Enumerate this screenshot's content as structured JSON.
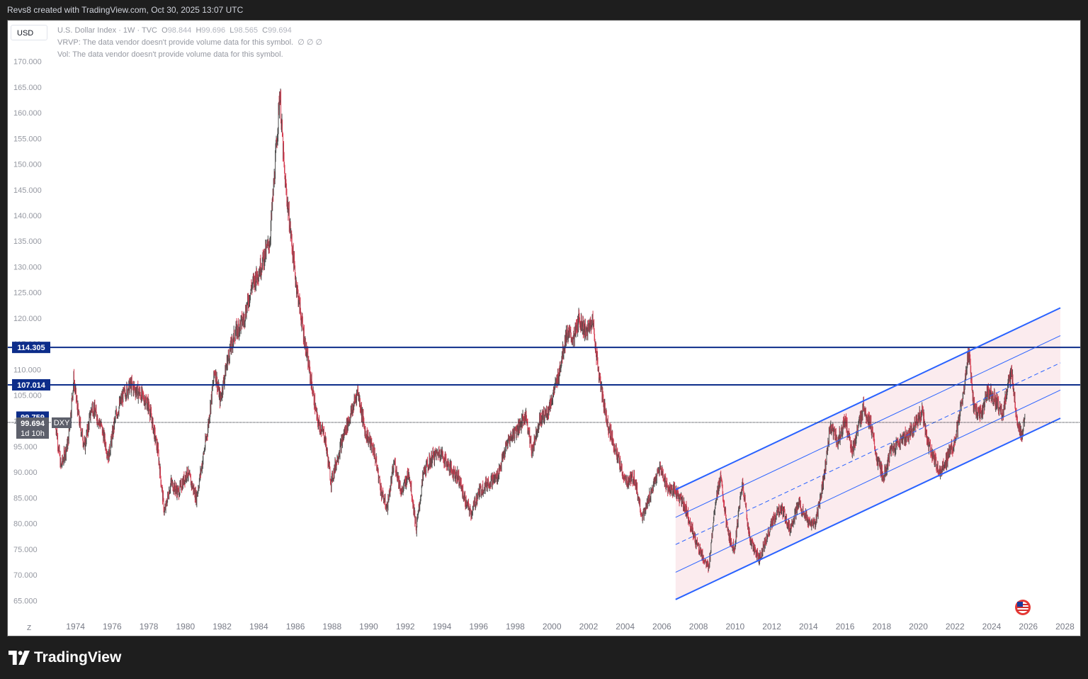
{
  "caption": "Revs8 created with TradingView.com, Oct 30, 2025 13:07 UTC",
  "currency": "USD",
  "legend": {
    "title": "U.S. Dollar Index · 1W · TVC",
    "o_label": "O",
    "o": "98.844",
    "h_label": "H",
    "h": "99.696",
    "l_label": "L",
    "l": "98.565",
    "c_label": "C",
    "c": "99.694",
    "vrvp": "VRVP: The data vendor doesn't provide volume data for this symbol.",
    "vrvp_tail": "∅  ∅  ∅",
    "vol": "Vol: The data vendor doesn't provide volume data for this symbol."
  },
  "zoom_label": "Z",
  "brand": "TradingView",
  "colors": {
    "up": "#4b4b4b",
    "down": "#d43a4f",
    "hline": "#0d2d8a",
    "channel": "#2962ff",
    "channel_fill": "#fbe9ec",
    "axis_text": "#787b86"
  },
  "chart_data": {
    "type": "candlestick",
    "symbol": "DXY",
    "interval": "1W",
    "ylim": [
      62,
      173
    ],
    "xlim": [
      1972.7,
      2028.6
    ],
    "y_ticks": [
      "65.000",
      "70.000",
      "75.000",
      "80.000",
      "85.000",
      "90.000",
      "95.000",
      "100.000",
      "105.000",
      "110.000",
      "115.000",
      "120.000",
      "125.000",
      "130.000",
      "135.000",
      "140.000",
      "145.000",
      "150.000",
      "155.000",
      "160.000",
      "165.000",
      "170.000"
    ],
    "x_ticks": [
      "1974",
      "1976",
      "1978",
      "1980",
      "1982",
      "1984",
      "1986",
      "1988",
      "1990",
      "1992",
      "1994",
      "1996",
      "1998",
      "2000",
      "2002",
      "2004",
      "2006",
      "2008",
      "2010",
      "2012",
      "2014",
      "2016",
      "2018",
      "2020",
      "2022",
      "2024",
      "2026",
      "2028"
    ],
    "price_path": [
      [
        1972.9,
        100
      ],
      [
        1973.2,
        91
      ],
      [
        1973.6,
        96
      ],
      [
        1973.9,
        108
      ],
      [
        1974.2,
        100
      ],
      [
        1974.5,
        95
      ],
      [
        1974.9,
        103
      ],
      [
        1975.4,
        99
      ],
      [
        1975.8,
        93
      ],
      [
        1976.2,
        101
      ],
      [
        1976.6,
        105
      ],
      [
        1977.0,
        107
      ],
      [
        1977.6,
        105
      ],
      [
        1978.0,
        103
      ],
      [
        1978.5,
        94
      ],
      [
        1978.85,
        82
      ],
      [
        1979.2,
        88
      ],
      [
        1979.6,
        86
      ],
      [
        1980.1,
        90
      ],
      [
        1980.6,
        85
      ],
      [
        1981.2,
        98
      ],
      [
        1981.6,
        110
      ],
      [
        1981.9,
        104
      ],
      [
        1982.3,
        112
      ],
      [
        1982.7,
        117
      ],
      [
        1983.2,
        120
      ],
      [
        1983.6,
        126
      ],
      [
        1984.1,
        130
      ],
      [
        1984.6,
        135
      ],
      [
        1984.9,
        150
      ],
      [
        1985.15,
        164
      ],
      [
        1985.4,
        148
      ],
      [
        1985.7,
        138
      ],
      [
        1986.0,
        128
      ],
      [
        1986.4,
        118
      ],
      [
        1986.8,
        109
      ],
      [
        1987.2,
        100
      ],
      [
        1987.6,
        97
      ],
      [
        1987.95,
        88
      ],
      [
        1988.3,
        93
      ],
      [
        1988.7,
        98
      ],
      [
        1989.1,
        102
      ],
      [
        1989.4,
        106
      ],
      [
        1989.8,
        98
      ],
      [
        1990.3,
        94
      ],
      [
        1990.7,
        86
      ],
      [
        1991.0,
        83
      ],
      [
        1991.4,
        92
      ],
      [
        1991.8,
        86
      ],
      [
        1992.2,
        90
      ],
      [
        1992.6,
        79
      ],
      [
        1993.0,
        90
      ],
      [
        1993.5,
        93
      ],
      [
        1993.9,
        94
      ],
      [
        1994.4,
        91
      ],
      [
        1994.9,
        89
      ],
      [
        1995.3,
        84
      ],
      [
        1995.6,
        82
      ],
      [
        1996.0,
        86
      ],
      [
        1996.5,
        88
      ],
      [
        1997.0,
        89
      ],
      [
        1997.6,
        96
      ],
      [
        1998.2,
        99
      ],
      [
        1998.6,
        101
      ],
      [
        1998.9,
        94
      ],
      [
        1999.3,
        100
      ],
      [
        1999.8,
        102
      ],
      [
        2000.3,
        108
      ],
      [
        2000.8,
        117
      ],
      [
        2001.2,
        116
      ],
      [
        2001.5,
        120
      ],
      [
        2001.9,
        117
      ],
      [
        2002.2,
        120
      ],
      [
        2002.6,
        108
      ],
      [
        2003.0,
        100
      ],
      [
        2003.5,
        94
      ],
      [
        2004.0,
        88
      ],
      [
        2004.5,
        89
      ],
      [
        2004.95,
        81
      ],
      [
        2005.4,
        86
      ],
      [
        2005.9,
        91
      ],
      [
        2006.3,
        87
      ],
      [
        2006.8,
        86
      ],
      [
        2007.3,
        83
      ],
      [
        2007.8,
        77
      ],
      [
        2008.3,
        73
      ],
      [
        2008.55,
        71
      ],
      [
        2008.9,
        84
      ],
      [
        2009.2,
        89
      ],
      [
        2009.6,
        78
      ],
      [
        2009.95,
        75
      ],
      [
        2010.4,
        88
      ],
      [
        2010.8,
        77
      ],
      [
        2011.3,
        73
      ],
      [
        2011.6,
        76
      ],
      [
        2012.0,
        80
      ],
      [
        2012.5,
        83
      ],
      [
        2013.0,
        79
      ],
      [
        2013.5,
        84
      ],
      [
        2014.0,
        80
      ],
      [
        2014.4,
        80
      ],
      [
        2014.8,
        88
      ],
      [
        2015.2,
        99
      ],
      [
        2015.6,
        96
      ],
      [
        2016.0,
        100
      ],
      [
        2016.4,
        94
      ],
      [
        2016.9,
        101
      ],
      [
        2017.0,
        103
      ],
      [
        2017.4,
        99
      ],
      [
        2017.7,
        93
      ],
      [
        2018.1,
        89
      ],
      [
        2018.5,
        94
      ],
      [
        2019.0,
        96
      ],
      [
        2019.6,
        98
      ],
      [
        2020.2,
        102
      ],
      [
        2020.5,
        96
      ],
      [
        2020.9,
        92
      ],
      [
        2021.2,
        90
      ],
      [
        2021.6,
        93
      ],
      [
        2022.0,
        96
      ],
      [
        2022.5,
        106
      ],
      [
        2022.75,
        114
      ],
      [
        2023.0,
        103
      ],
      [
        2023.4,
        101
      ],
      [
        2023.8,
        106
      ],
      [
        2024.2,
        104
      ],
      [
        2024.6,
        101
      ],
      [
        2024.95,
        108
      ],
      [
        2025.1,
        109
      ],
      [
        2025.35,
        101
      ],
      [
        2025.6,
        97
      ],
      [
        2025.83,
        99.7
      ]
    ],
    "horizontal_levels": [
      {
        "value": 114.305,
        "label": "114.305"
      },
      {
        "value": 107.014,
        "label": "107.014"
      }
    ],
    "price_labels": {
      "prev": "99.759",
      "last": "99.694",
      "symbol": "DXY",
      "countdown": "1d 10h"
    },
    "channel": {
      "x0": 2006.75,
      "x1": 2027.75,
      "lower": [
        65.2,
        100.5
      ],
      "upper": [
        86.6,
        122.0
      ],
      "mid_lines": [
        [
          70.5,
          106.0
        ],
        [
          81.2,
          116.6
        ]
      ],
      "dashed_mid": [
        75.9,
        111.3
      ]
    }
  }
}
